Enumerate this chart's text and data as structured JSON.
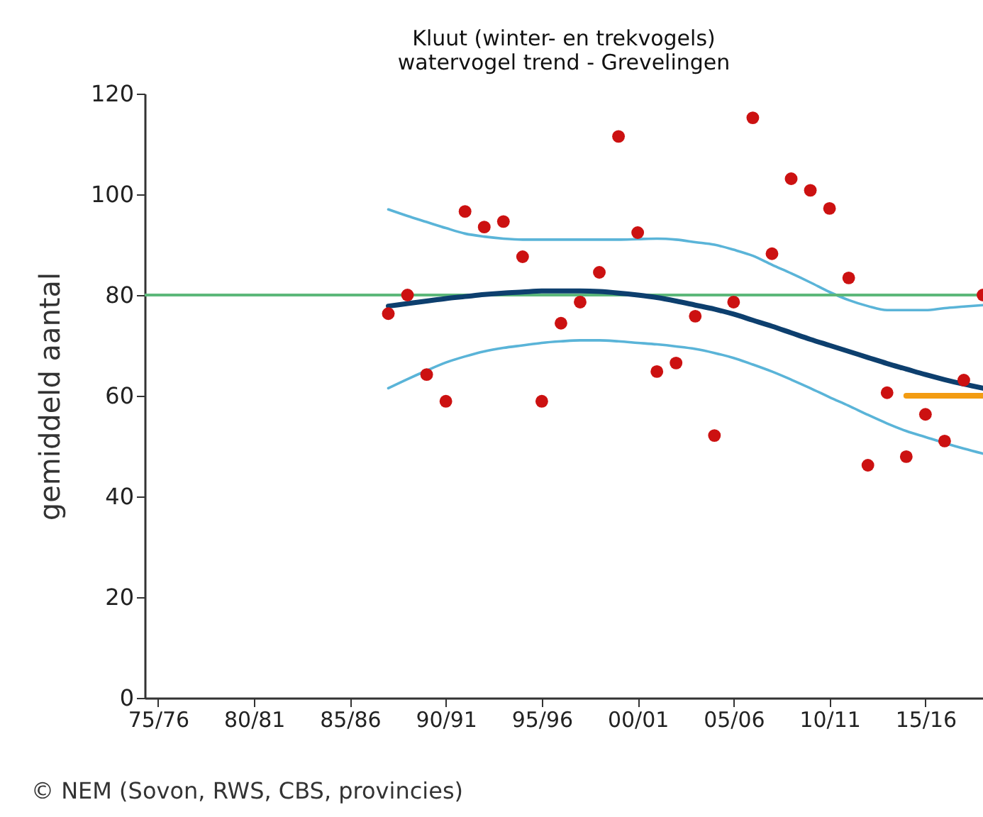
{
  "chart_data": {
    "type": "scatter",
    "title": "Kluut (winter- en trekvogels)",
    "subtitle": "watervogel trend - Grevelingen",
    "ylabel": "gemiddeld aantal",
    "annotations": [
      "© NEM (Sovon, RWS, CBS, provincies)"
    ],
    "categories": [
      "75/76",
      null,
      null,
      null,
      null,
      "80/81",
      null,
      null,
      null,
      null,
      "85/86",
      null,
      null,
      null,
      null,
      "90/91",
      null,
      null,
      null,
      null,
      "95/96",
      null,
      null,
      null,
      null,
      "00/01",
      null,
      null,
      null,
      null,
      "05/06",
      null,
      null,
      null,
      null,
      "10/11",
      null,
      null,
      null,
      null,
      "15/16",
      null,
      null,
      null
    ],
    "ylim": [
      0,
      120
    ],
    "yticks": [
      0,
      20,
      40,
      60,
      80,
      100,
      120
    ],
    "grid": false,
    "ref_lines": [
      {
        "axis": "y",
        "value": 80,
        "color": "#5cb87a"
      }
    ],
    "series": [
      {
        "type": "line",
        "color": "#5ab4d8",
        "values": [
          null,
          null,
          null,
          null,
          null,
          null,
          null,
          null,
          null,
          null,
          null,
          null,
          97,
          95.7,
          94.5,
          93.3,
          92.2,
          91.6,
          91.2,
          91,
          91,
          91,
          91,
          91,
          91,
          91.1,
          91.2,
          91,
          90.5,
          90,
          89,
          87.8,
          86,
          84.3,
          82.5,
          80.6,
          79,
          77.8,
          77,
          77,
          77,
          77.4,
          77.7,
          78
        ]
      },
      {
        "type": "line",
        "color": "#5ab4d8",
        "values": [
          null,
          null,
          null,
          null,
          null,
          null,
          null,
          null,
          null,
          null,
          null,
          null,
          61.5,
          63.3,
          65,
          66.6,
          67.8,
          68.8,
          69.5,
          70,
          70.5,
          70.8,
          71,
          71,
          70.8,
          70.5,
          70.2,
          69.8,
          69.3,
          68.5,
          67.5,
          66.2,
          64.8,
          63.2,
          61.5,
          59.7,
          58,
          56.2,
          54.5,
          53,
          51.8,
          50.6,
          49.5,
          48.5
        ]
      },
      {
        "type": "line",
        "color": "#0d3f6e",
        "values": [
          null,
          null,
          null,
          null,
          null,
          null,
          null,
          null,
          null,
          null,
          null,
          null,
          77.8,
          78.3,
          78.8,
          79.3,
          79.7,
          80.1,
          80.4,
          80.6,
          80.8,
          80.8,
          80.8,
          80.7,
          80.4,
          80,
          79.5,
          78.8,
          78,
          77.2,
          76.2,
          75,
          73.8,
          72.5,
          71.2,
          70,
          68.8,
          67.6,
          66.4,
          65.3,
          64.2,
          63.2,
          62.3,
          61.5
        ]
      },
      {
        "type": "line",
        "color": "#f39c12",
        "values": [
          null,
          null,
          null,
          null,
          null,
          null,
          null,
          null,
          null,
          null,
          null,
          null,
          null,
          null,
          null,
          null,
          null,
          null,
          null,
          null,
          null,
          null,
          null,
          null,
          null,
          null,
          null,
          null,
          null,
          null,
          null,
          null,
          null,
          null,
          null,
          null,
          null,
          null,
          null,
          60,
          60,
          60,
          60,
          60
        ]
      },
      {
        "type": "scatter",
        "color": "#cc1111",
        "marker": "circle",
        "values": [
          null,
          null,
          null,
          null,
          null,
          null,
          null,
          null,
          null,
          null,
          null,
          null,
          76.3,
          80,
          64.2,
          58.9,
          96.6,
          93.5,
          94.6,
          87.6,
          58.9,
          74.4,
          78.6,
          84.5,
          111.5,
          92.4,
          64.8,
          66.5,
          75.8,
          52.1,
          78.6,
          115.2,
          88.2,
          103.1,
          100.8,
          97.2,
          83.4,
          46.2,
          60.6,
          47.9,
          56.3,
          51,
          63.1,
          80
        ]
      }
    ]
  }
}
